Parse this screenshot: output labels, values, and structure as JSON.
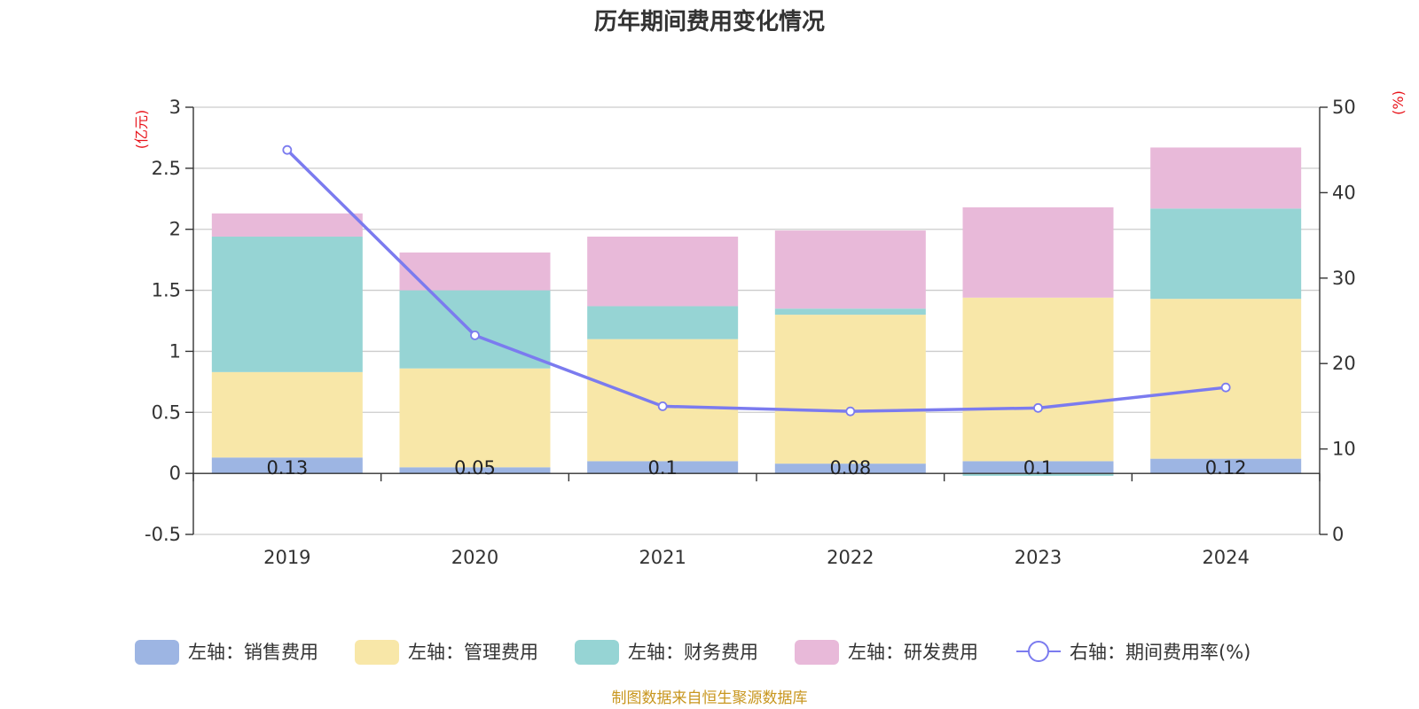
{
  "chart_data": {
    "type": "bar",
    "title": "历年期间费用变化情况",
    "categories": [
      "2019",
      "2020",
      "2021",
      "2022",
      "2023",
      "2024"
    ],
    "left_axis": {
      "unit": "(亿元)",
      "ylim": [
        -0.5,
        3
      ],
      "ticks": [
        "3",
        "2.5",
        "2",
        "1.5",
        "1",
        "0.5",
        "0",
        "-0.5"
      ]
    },
    "right_axis": {
      "unit": "(%)",
      "ylim": [
        0,
        50
      ],
      "ticks": [
        "50",
        "40",
        "30",
        "20",
        "10",
        "0"
      ]
    },
    "series": [
      {
        "name": "左轴：销售费用",
        "color": "#9db5e3",
        "values": [
          0.13,
          0.05,
          0.1,
          0.08,
          0.1,
          0.12
        ],
        "labels": [
          "0.13",
          "0.05",
          "0.1",
          "0.08",
          "0.1",
          "0.12"
        ]
      },
      {
        "name": "左轴：管理费用",
        "color": "#f8e7a8",
        "values": [
          0.7,
          0.81,
          1.0,
          1.22,
          1.34,
          1.31
        ]
      },
      {
        "name": "左轴：财务费用",
        "color": "#96d4d4",
        "values": [
          1.11,
          0.64,
          0.27,
          0.05,
          -0.02,
          0.74
        ]
      },
      {
        "name": "左轴：研发费用",
        "color": "#e8b9d9",
        "values": [
          0.19,
          0.31,
          0.57,
          0.64,
          0.74,
          0.5
        ]
      }
    ],
    "line": {
      "name": "右轴：期间费用率(%)",
      "color": "#7b7bef",
      "values": [
        45.0,
        23.3,
        15.0,
        14.4,
        14.8,
        17.2
      ]
    },
    "grid": true,
    "legend_position": "bottom",
    "source": "制图数据来自恒生聚源数据库"
  }
}
